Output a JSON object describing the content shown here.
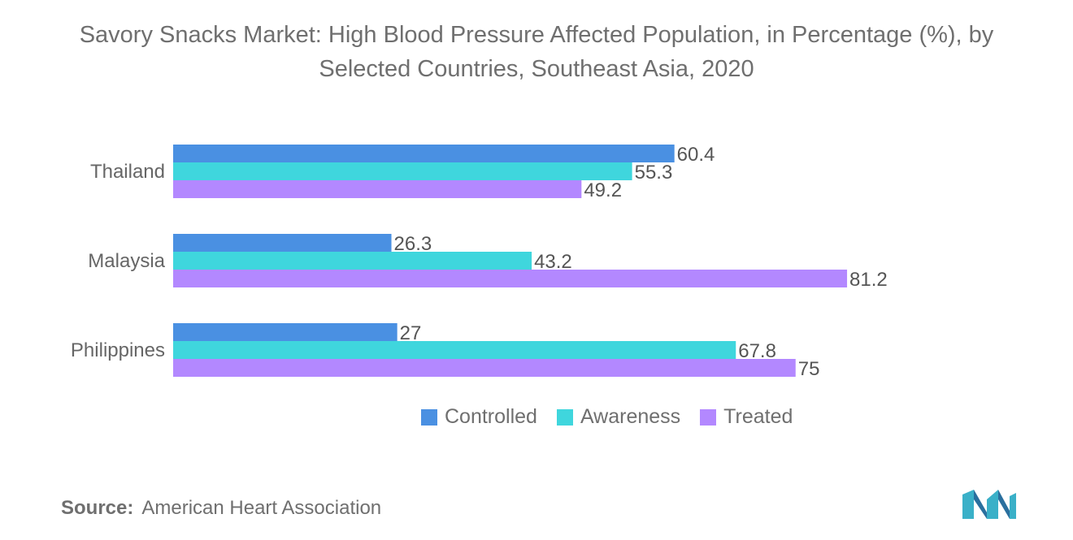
{
  "title_line1": "Savory Snacks Market: High Blood Pressure Affected Population, in Percentage (%), by",
  "title_line2": "Selected Countries, Southeast Asia, 2020",
  "source_label": "Source:",
  "source_text": "American Heart Association",
  "chart_data": {
    "type": "bar",
    "orientation": "horizontal",
    "categories": [
      "Thailand",
      "Malaysia",
      "Philippines"
    ],
    "series": [
      {
        "name": "Controlled",
        "color": "#4a90e2",
        "values": [
          60.4,
          26.3,
          27
        ]
      },
      {
        "name": "Awareness",
        "color": "#3fd6dd",
        "values": [
          55.3,
          43.2,
          67.8
        ]
      },
      {
        "name": "Treated",
        "color": "#b388ff",
        "values": [
          49.2,
          81.2,
          75
        ]
      }
    ],
    "value_labels": [
      [
        "60.4",
        "26.3",
        "27"
      ],
      [
        "55.3",
        "43.2",
        "67.8"
      ],
      [
        "49.2",
        "81.2",
        "75"
      ]
    ],
    "xlim": [
      0,
      100
    ],
    "grid": false,
    "legend_position": "bottom"
  },
  "logo_icon": "mordor-intelligence-logo-icon"
}
